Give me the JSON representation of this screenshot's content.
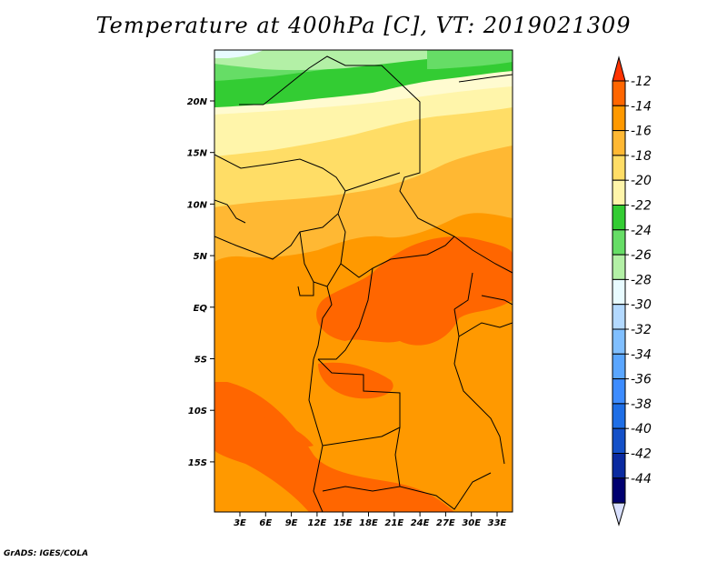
{
  "title": "Temperature at 400hPa [C], VT: 2019021309",
  "credit": "GrADS: IGES/COLA",
  "map": {
    "variable": "Temperature",
    "level": "400hPa",
    "unit": "C",
    "valid_time": "2019021309",
    "lat_ticks": [
      "20N",
      "15N",
      "10N",
      "5N",
      "EQ",
      "5S",
      "10S",
      "15S"
    ],
    "lon_ticks": [
      "3E",
      "6E",
      "9E",
      "12E",
      "15E",
      "18E",
      "21E",
      "24E",
      "27E",
      "30E",
      "33E"
    ]
  },
  "colorbar": {
    "labels": [
      "-12",
      "-14",
      "-16",
      "-18",
      "-20",
      "-22",
      "-24",
      "-26",
      "-28",
      "-30",
      "-32",
      "-34",
      "-36",
      "-38",
      "-40",
      "-42",
      "-44"
    ],
    "colors": [
      "#ff3300",
      "#ff6600",
      "#ff9900",
      "#ffb833",
      "#ffdd66",
      "#fff5aa",
      "#33cc33",
      "#66dd66",
      "#b3f0a6",
      "#e8fbff",
      "#b3d9ff",
      "#80bfff",
      "#5aa6ff",
      "#3d8cff",
      "#1e6ee6",
      "#1450c8",
      "#0a2aa0",
      "#000070",
      "#d9e0ff"
    ]
  }
}
